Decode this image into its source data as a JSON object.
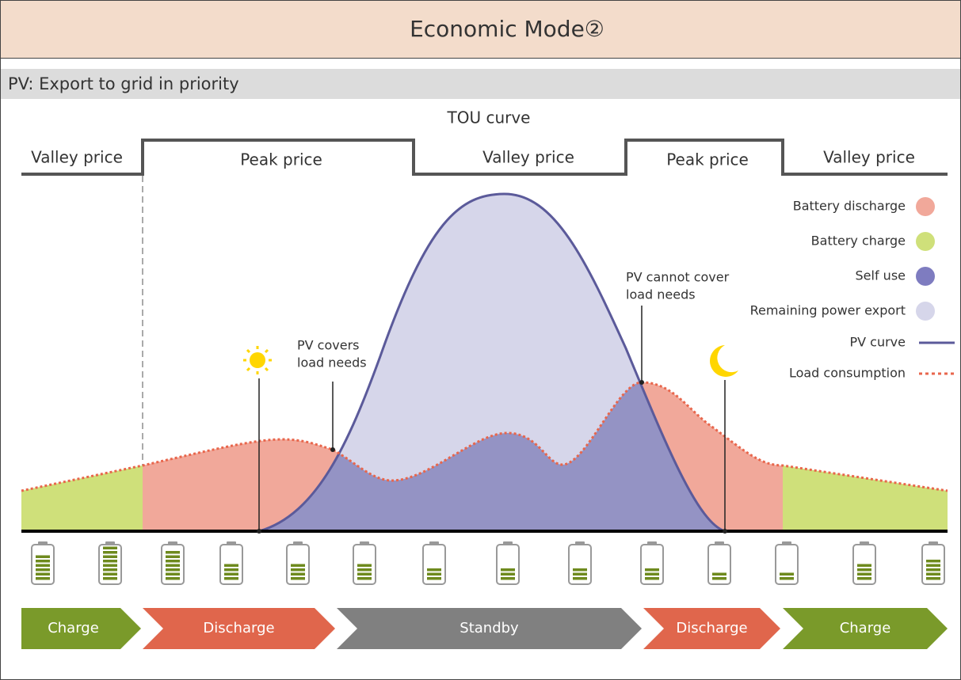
{
  "header": {
    "title": "Economic Mode②"
  },
  "subtitle": "PV: Export to grid in priority",
  "tou": {
    "title": "TOU curve",
    "periods": [
      "Valley price",
      "Peak price",
      "Valley price",
      "Peak price",
      "Valley price"
    ]
  },
  "legend": [
    "Battery discharge",
    "Battery charge",
    "Self use",
    "Remaining power export",
    "PV curve",
    "Load consumption"
  ],
  "annotations": {
    "pv_covers": [
      "PV covers",
      "load needs"
    ],
    "pv_cannot_cover": [
      "PV cannot cover",
      "load needs"
    ]
  },
  "stages": [
    "Charge",
    "Discharge",
    "Standby",
    "Discharge",
    "Charge"
  ]
}
